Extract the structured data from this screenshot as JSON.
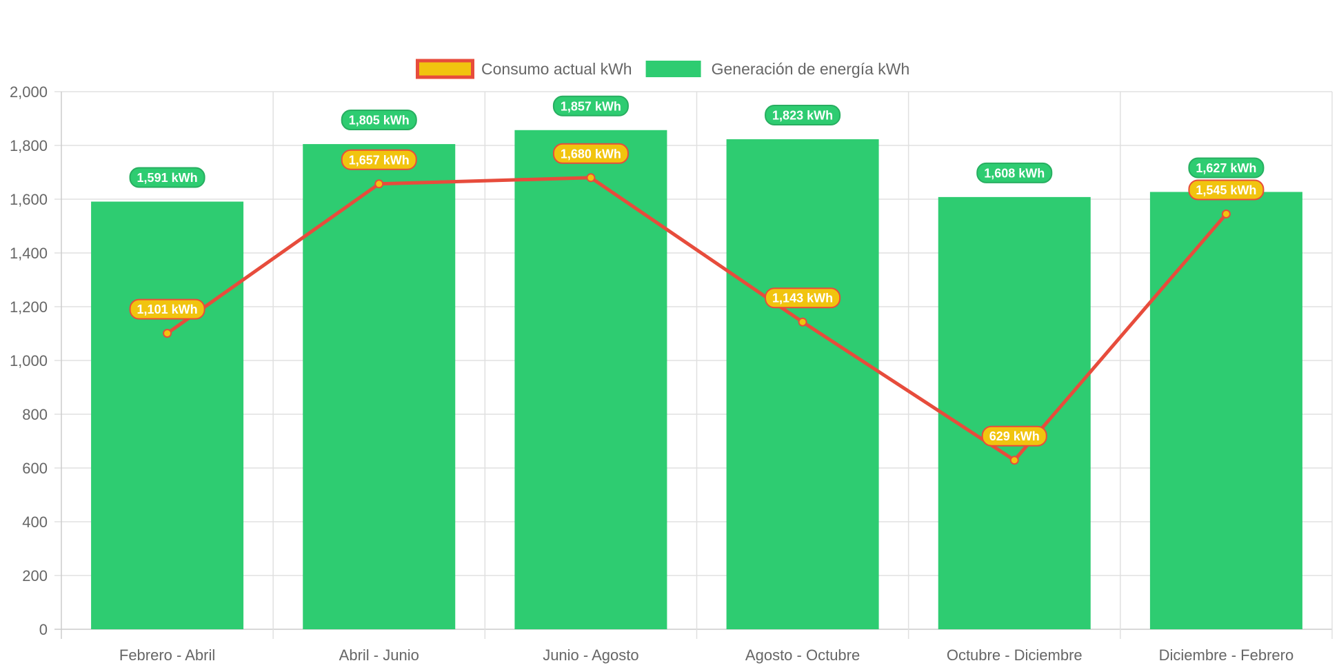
{
  "chart_data": {
    "type": "bar",
    "categories": [
      "Febrero - Abril",
      "Abril - Junio",
      "Junio - Agosto",
      "Agosto - Octubre",
      "Octubre - Diciembre",
      "Diciembre - Febrero"
    ],
    "series": [
      {
        "name": "Consumo actual kWh",
        "type": "line",
        "values": [
          1101,
          1657,
          1680,
          1143,
          629,
          1545
        ],
        "labels": [
          "1,101 kWh",
          "1,657 kWh",
          "1,680 kWh",
          "1,143 kWh",
          "629 kWh",
          "1,545 kWh"
        ],
        "color": "#e74c3c",
        "fill_color": "#f1c40f"
      },
      {
        "name": "Generación de energía kWh",
        "type": "bar",
        "values": [
          1591,
          1805,
          1857,
          1823,
          1608,
          1627
        ],
        "labels": [
          "1,591 kWh",
          "1,805 kWh",
          "1,857 kWh",
          "1,823 kWh",
          "1,608 kWh",
          "1,627 kWh"
        ],
        "color": "#2ecc71",
        "border_color": "#27ae60"
      }
    ],
    "ylim": [
      0,
      2000
    ],
    "yticks": [
      0,
      200,
      400,
      600,
      800,
      1000,
      1200,
      1400,
      1600,
      1800,
      2000
    ],
    "ytick_labels": [
      "0",
      "200",
      "400",
      "600",
      "800",
      "1,000",
      "1,200",
      "1,400",
      "1,600",
      "1,800",
      "2,000"
    ],
    "grid": true,
    "legend_position": "top-center",
    "xlabel": "",
    "ylabel": "",
    "title": ""
  },
  "colors": {
    "grid": "#e0e0e0",
    "axis": "#cccccc",
    "tick_text": "#666666"
  }
}
